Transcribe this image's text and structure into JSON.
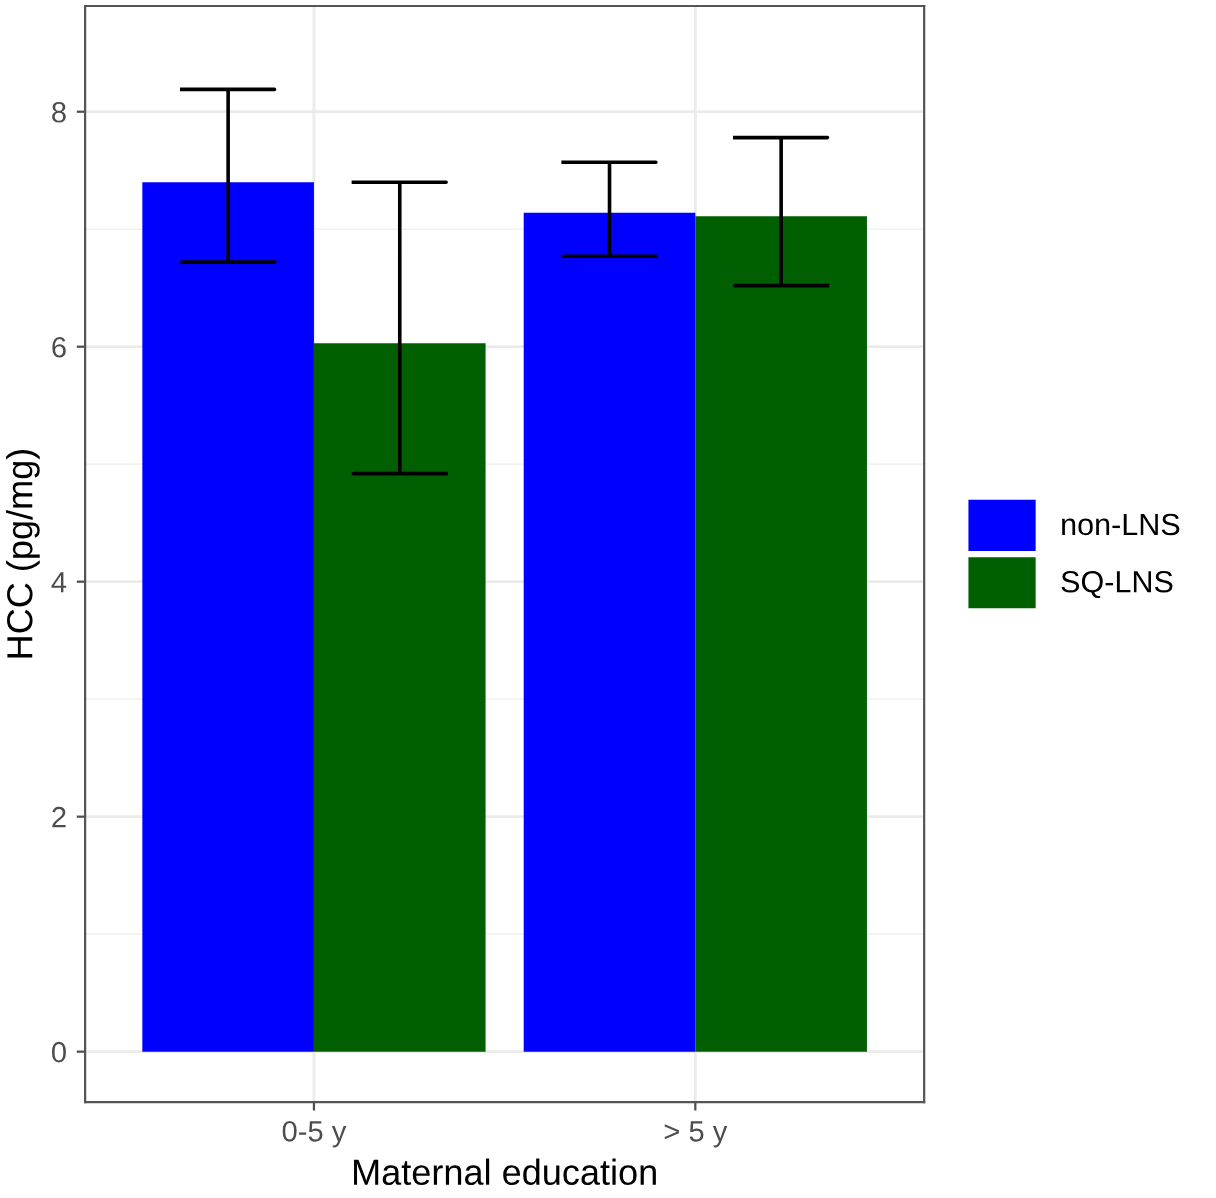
{
  "chart_data": {
    "type": "bar",
    "xlabel": "Maternal education",
    "ylabel": "HCC (pg/mg)",
    "categories": [
      "0-5 y",
      "> 5 y"
    ],
    "series": [
      {
        "name": "non-LNS",
        "color": "#0000ff",
        "values": [
          7.4,
          7.14
        ],
        "errors": [
          [
            6.72,
            8.19
          ],
          [
            6.77,
            7.57
          ]
        ]
      },
      {
        "name": "SQ-LNS",
        "color": "#005f00",
        "values": [
          6.03,
          7.11
        ],
        "errors": [
          [
            4.92,
            7.4
          ],
          [
            6.52,
            7.78
          ]
        ]
      }
    ],
    "ylim": [
      -0.43,
      8.9
    ],
    "yticks": [
      0,
      2,
      4,
      6,
      8
    ],
    "grid": true,
    "legend": "right"
  }
}
